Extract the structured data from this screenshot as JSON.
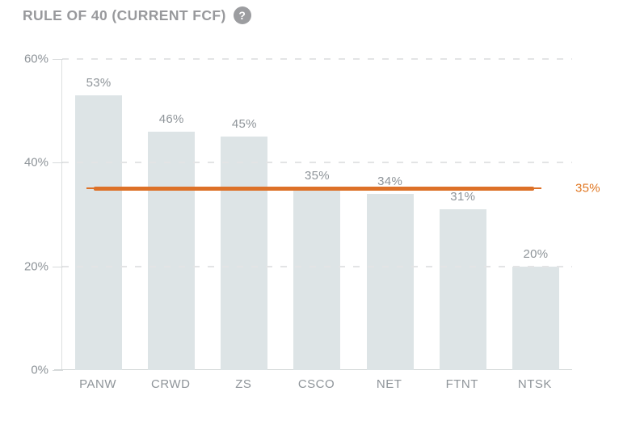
{
  "header": {
    "title": "RULE OF 40 (CURRENT FCF)",
    "help_icon_glyph": "?"
  },
  "chart_data": {
    "type": "bar",
    "title": "RULE OF 40 (CURRENT FCF)",
    "categories": [
      "PANW",
      "CRWD",
      "ZS",
      "CSCO",
      "NET",
      "FTNT",
      "NTSK"
    ],
    "values": [
      53,
      46,
      45,
      35,
      34,
      31,
      20
    ],
    "value_labels": [
      "53%",
      "46%",
      "45%",
      "35%",
      "34%",
      "31%",
      "20%"
    ],
    "xlabel": "",
    "ylabel": "",
    "ylim": [
      0,
      60
    ],
    "ytick_values": [
      0,
      20,
      40,
      60
    ],
    "ytick_labels": [
      "0%",
      "20%",
      "40%",
      "60%"
    ],
    "grid": "horizontal dashed at 20/40/60, solid baseline at 0",
    "legend": "none",
    "threshold": {
      "value": 35,
      "label": "35%"
    }
  },
  "colors": {
    "bar_fill": "#dde4e6",
    "threshold_orange": "#dd7128",
    "threshold_label_orange": "#e0751f",
    "text_gray": "#8e9499",
    "title_gray": "#98999c",
    "gridline_gray": "#e3e4e5",
    "axis_gray": "#d3d7d8"
  }
}
